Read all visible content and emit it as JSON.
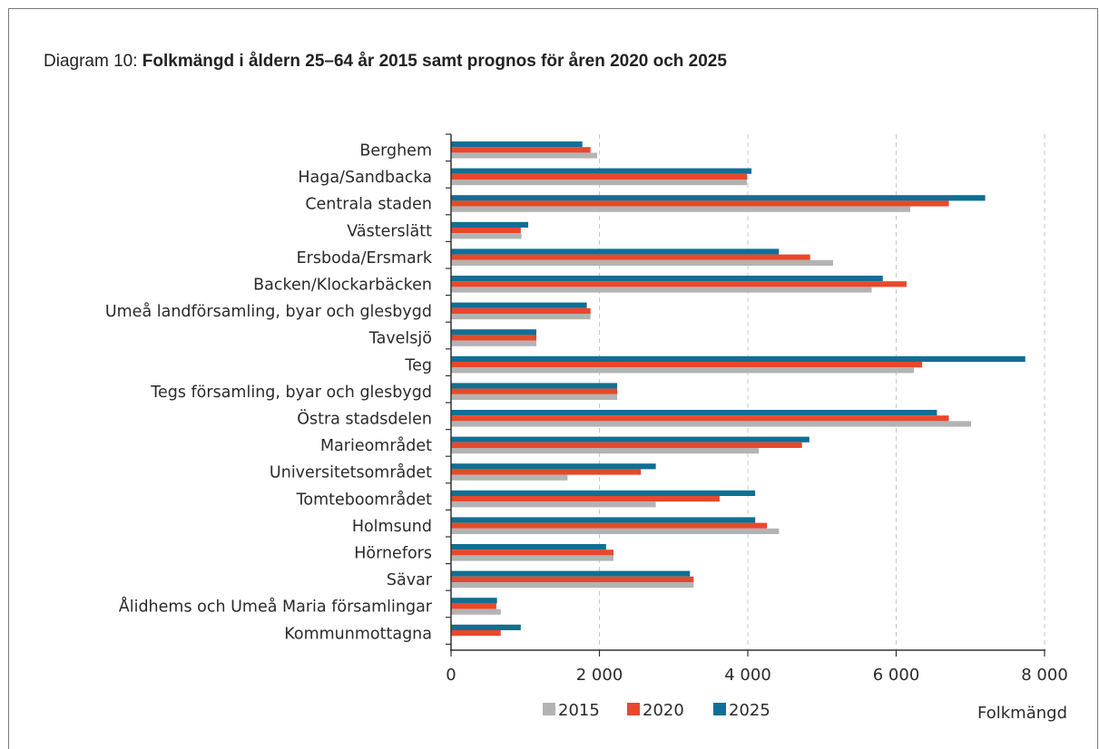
{
  "title": {
    "prefix": "Diagram 10: ",
    "main": "Folkmängd i åldern 25–64 år 2015 samt prognos för åren 2020 och 2025"
  },
  "chart_data": {
    "type": "bar",
    "orientation": "horizontal",
    "categories": [
      "Berghem",
      "Haga/Sandbacka",
      "Centrala staden",
      "Västerslätt",
      "Ersboda/Ersmark",
      "Backen/Klockarbäcken",
      "Umeå landförsamling, byar och glesbygd",
      "Tavelsjö",
      "Teg",
      "Tegs församling, byar och glesbygd",
      "Östra stadsdelen",
      "Marieområdet",
      "Universitetsområdet",
      "Tomteboområdet",
      "Holmsund",
      "Hörnefors",
      "Sävar",
      "Ålidhems och Umeå Maria församlingar",
      "Kommunmottagna"
    ],
    "series": [
      {
        "name": "2015",
        "color": "#b3b3b3",
        "values": [
          1970,
          3990,
          6190,
          950,
          5150,
          5670,
          1880,
          1150,
          6240,
          2240,
          7010,
          4150,
          1570,
          2760,
          4420,
          2190,
          3270,
          670,
          0
        ]
      },
      {
        "name": "2020",
        "color": "#e8482b",
        "values": [
          1880,
          3990,
          6710,
          940,
          4840,
          6140,
          1880,
          1150,
          6350,
          2240,
          6710,
          4730,
          2560,
          3620,
          4260,
          2190,
          3270,
          610,
          670
        ]
      },
      {
        "name": "2025",
        "color": "#0f6f94",
        "values": [
          1770,
          4050,
          7200,
          1040,
          4420,
          5820,
          1830,
          1150,
          7740,
          2240,
          6550,
          4830,
          2760,
          4100,
          4100,
          2090,
          3220,
          620,
          940
        ]
      }
    ],
    "x_ticks": [
      "0",
      "2 000",
      "4 000",
      "6 000",
      "8 000"
    ],
    "x_tick_values": [
      0,
      2000,
      4000,
      6000,
      8000
    ],
    "xlim": [
      0,
      8000
    ],
    "xlabel": "Folkmängd",
    "grid": "vertical dashed",
    "legend_position": "bottom"
  }
}
